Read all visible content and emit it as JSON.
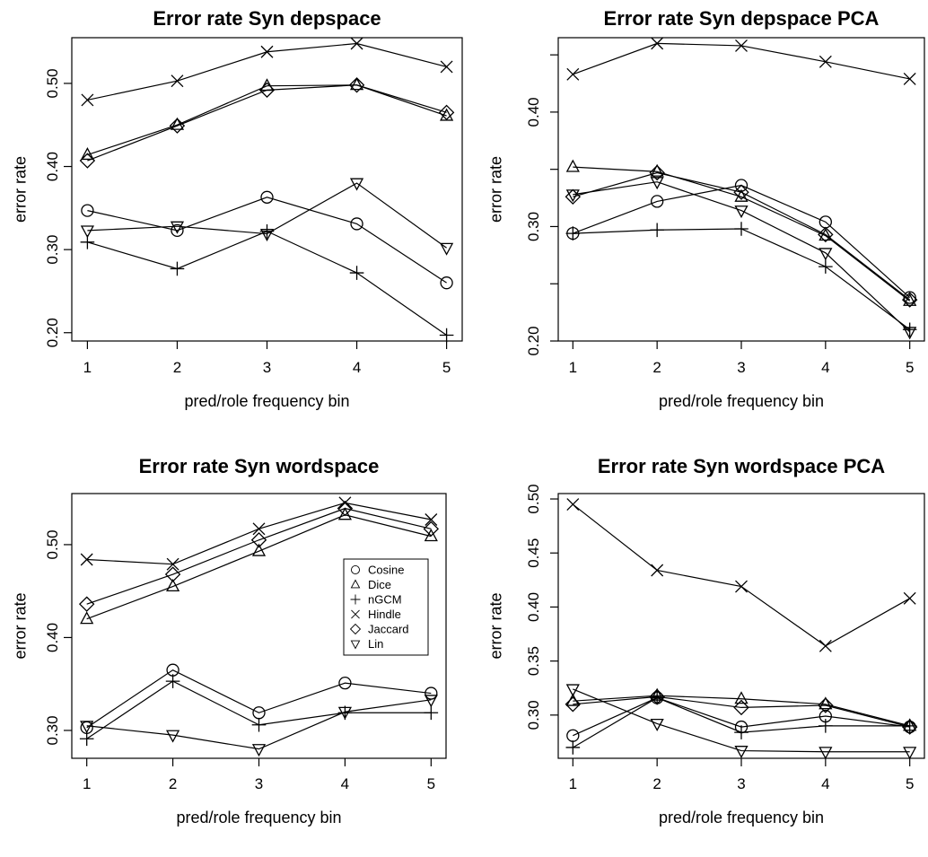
{
  "chart_data": [
    {
      "type": "line",
      "title": "Error rate Syn depspace",
      "xlabel": "pred/role frequency bin",
      "ylabel": "error rate",
      "x": [
        1,
        2,
        3,
        4,
        5
      ],
      "xticks": [
        "1",
        "2",
        "3",
        "4",
        "5"
      ],
      "yticks": [
        "0.20",
        "0.30",
        "0.40",
        "0.50"
      ],
      "ylim": [
        0.19,
        0.555
      ],
      "legend": false,
      "series": [
        {
          "name": "Cosine",
          "marker": "circle",
          "values": [
            0.347,
            0.323,
            0.363,
            0.331,
            0.26
          ]
        },
        {
          "name": "Dice",
          "marker": "triangle-up",
          "values": [
            0.414,
            0.45,
            0.497,
            0.498,
            0.461
          ]
        },
        {
          "name": "nGCM",
          "marker": "plus",
          "values": [
            0.309,
            0.277,
            0.322,
            0.272,
            0.197
          ]
        },
        {
          "name": "Hindle",
          "marker": "cross",
          "values": [
            0.48,
            0.503,
            0.538,
            0.548,
            0.52
          ]
        },
        {
          "name": "Jaccard",
          "marker": "diamond",
          "values": [
            0.407,
            0.449,
            0.492,
            0.498,
            0.465
          ]
        },
        {
          "name": "Lin",
          "marker": "triangle-down",
          "values": [
            0.323,
            0.328,
            0.319,
            0.38,
            0.302
          ]
        }
      ]
    },
    {
      "type": "line",
      "title": "Error rate Syn depspace PCA",
      "xlabel": "pred/role frequency bin",
      "ylabel": "error rate",
      "x": [
        1,
        2,
        3,
        4,
        5
      ],
      "xticks": [
        "1",
        "2",
        "3",
        "4",
        "5"
      ],
      "yticks": [
        "0.20",
        "0.30",
        "0.40"
      ],
      "yminor": [
        0.25,
        0.35,
        0.45
      ],
      "ylim": [
        0.2,
        0.465
      ],
      "legend": false,
      "series": [
        {
          "name": "Cosine",
          "marker": "circle",
          "values": [
            0.294,
            0.322,
            0.336,
            0.304,
            0.238
          ]
        },
        {
          "name": "Dice",
          "marker": "triangle-up",
          "values": [
            0.352,
            0.348,
            0.326,
            0.292,
            0.235
          ]
        },
        {
          "name": "nGCM",
          "marker": "plus",
          "values": [
            0.294,
            0.297,
            0.298,
            0.265,
            0.21
          ]
        },
        {
          "name": "Hindle",
          "marker": "cross",
          "values": [
            0.433,
            0.46,
            0.458,
            0.444,
            0.429
          ]
        },
        {
          "name": "Jaccard",
          "marker": "diamond",
          "values": [
            0.326,
            0.347,
            0.33,
            0.293,
            0.236
          ]
        },
        {
          "name": "Lin",
          "marker": "triangle-down",
          "values": [
            0.328,
            0.339,
            0.314,
            0.277,
            0.208
          ]
        }
      ]
    },
    {
      "type": "line",
      "title": "Error rate Syn wordspace",
      "xlabel": "pred/role frequency bin",
      "ylabel": "error rate",
      "x": [
        1,
        2,
        3,
        4,
        5
      ],
      "xticks": [
        "1",
        "2",
        "3",
        "4",
        "5"
      ],
      "yticks": [
        "0.30",
        "0.40",
        "0.50"
      ],
      "ylim": [
        0.27,
        0.555
      ],
      "legend": true,
      "legend_position": "center-right",
      "series": [
        {
          "name": "Cosine",
          "marker": "circle",
          "values": [
            0.303,
            0.365,
            0.319,
            0.351,
            0.34
          ]
        },
        {
          "name": "Dice",
          "marker": "triangle-up",
          "values": [
            0.42,
            0.455,
            0.493,
            0.532,
            0.509
          ]
        },
        {
          "name": "nGCM",
          "marker": "plus",
          "values": [
            0.291,
            0.353,
            0.306,
            0.319,
            0.319
          ]
        },
        {
          "name": "Hindle",
          "marker": "cross",
          "values": [
            0.484,
            0.479,
            0.517,
            0.545,
            0.527
          ]
        },
        {
          "name": "Jaccard",
          "marker": "diamond",
          "values": [
            0.436,
            0.468,
            0.505,
            0.539,
            0.517
          ]
        },
        {
          "name": "Lin",
          "marker": "triangle-down",
          "values": [
            0.305,
            0.295,
            0.28,
            0.32,
            0.333
          ]
        }
      ]
    },
    {
      "type": "line",
      "title": "Error rate Syn wordspace PCA",
      "xlabel": "pred/role frequency bin",
      "ylabel": "error rate",
      "x": [
        1,
        2,
        3,
        4,
        5
      ],
      "xticks": [
        "1",
        "2",
        "3",
        "4",
        "5"
      ],
      "yticks": [
        "0.30",
        "0.35",
        "0.40",
        "0.45",
        "0.50"
      ],
      "ylim": [
        0.26,
        0.505
      ],
      "legend": false,
      "series": [
        {
          "name": "Cosine",
          "marker": "circle",
          "values": [
            0.281,
            0.316,
            0.289,
            0.299,
            0.289
          ]
        },
        {
          "name": "Dice",
          "marker": "triangle-up",
          "values": [
            0.313,
            0.318,
            0.315,
            0.31,
            0.29
          ]
        },
        {
          "name": "nGCM",
          "marker": "plus",
          "values": [
            0.27,
            0.316,
            0.284,
            0.29,
            0.29
          ]
        },
        {
          "name": "Hindle",
          "marker": "cross",
          "values": [
            0.495,
            0.434,
            0.419,
            0.364,
            0.408
          ]
        },
        {
          "name": "Jaccard",
          "marker": "diamond",
          "values": [
            0.31,
            0.317,
            0.307,
            0.309,
            0.289
          ]
        },
        {
          "name": "Lin",
          "marker": "triangle-down",
          "values": [
            0.324,
            0.292,
            0.267,
            0.266,
            0.266
          ]
        }
      ]
    }
  ]
}
